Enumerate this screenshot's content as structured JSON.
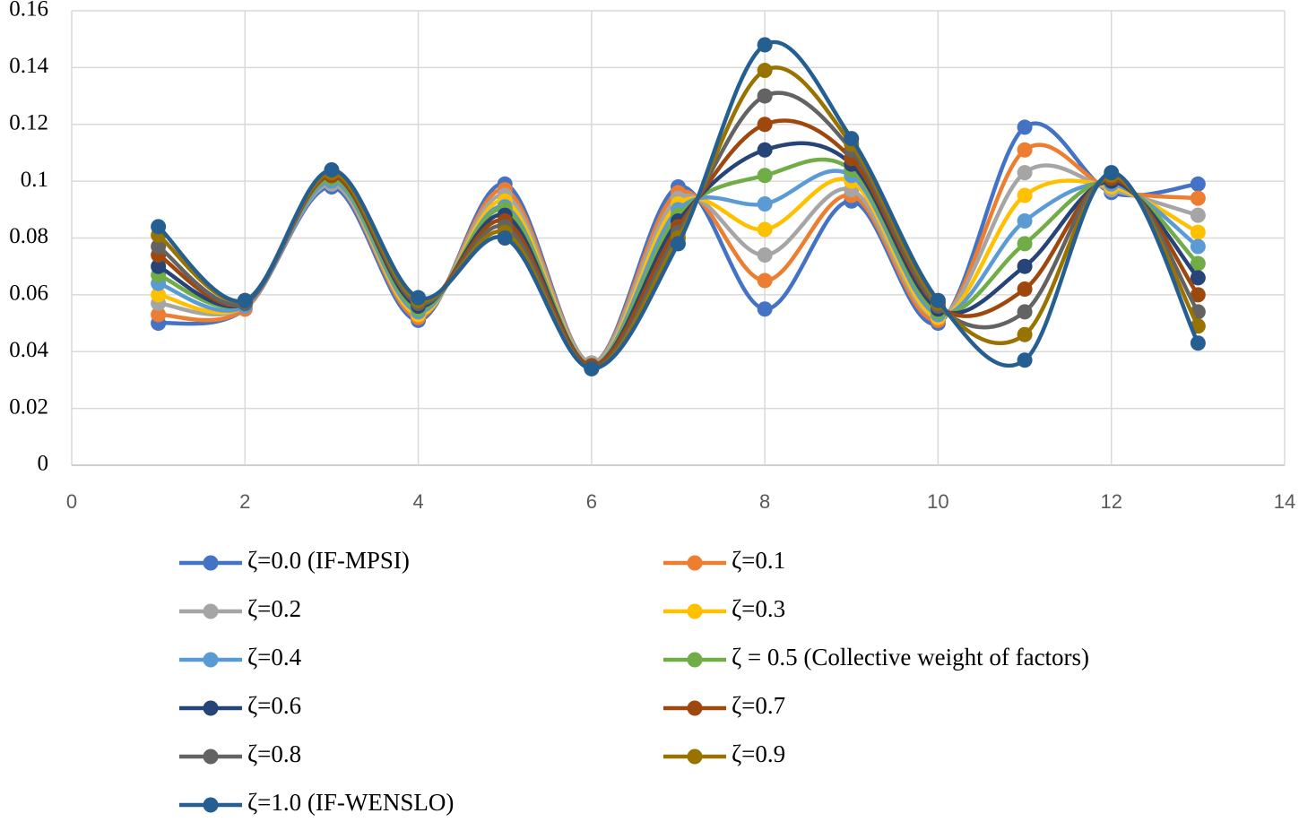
{
  "chart_data": {
    "type": "line",
    "smooth": true,
    "grid": true,
    "x": [
      1,
      2,
      3,
      4,
      5,
      6,
      7,
      8,
      9,
      10,
      11,
      12,
      13
    ],
    "xlim": [
      0,
      14
    ],
    "xticks": [
      0,
      2,
      4,
      6,
      8,
      10,
      12,
      14
    ],
    "ylim": [
      0,
      0.16
    ],
    "yticks": [
      0,
      0.02,
      0.04,
      0.06,
      0.08,
      0.1,
      0.12,
      0.14,
      0.16
    ],
    "series": [
      {
        "name": "ζ=0.0 (IF-MPSI)",
        "color": "#4472c4",
        "values": [
          0.05,
          0.055,
          0.098,
          0.051,
          0.099,
          0.036,
          0.098,
          0.055,
          0.093,
          0.05,
          0.119,
          0.096,
          0.099
        ]
      },
      {
        "name": "ζ=0.1",
        "color": "#ed7d31",
        "values": [
          0.053,
          0.055,
          0.099,
          0.052,
          0.097,
          0.036,
          0.096,
          0.065,
          0.095,
          0.051,
          0.111,
          0.097,
          0.094
        ]
      },
      {
        "name": "ζ=0.2",
        "color": "#a5a5a5",
        "values": [
          0.057,
          0.056,
          0.099,
          0.053,
          0.095,
          0.036,
          0.094,
          0.074,
          0.097,
          0.052,
          0.103,
          0.097,
          0.088
        ]
      },
      {
        "name": "ζ=0.3",
        "color": "#ffc000",
        "values": [
          0.06,
          0.056,
          0.1,
          0.053,
          0.093,
          0.035,
          0.092,
          0.083,
          0.1,
          0.052,
          0.095,
          0.098,
          0.082
        ]
      },
      {
        "name": "ζ=0.4",
        "color": "#5b9bd5",
        "values": [
          0.064,
          0.056,
          0.1,
          0.054,
          0.091,
          0.035,
          0.09,
          0.092,
          0.102,
          0.053,
          0.086,
          0.099,
          0.077
        ]
      },
      {
        "name": "ζ = 0.5 (Collective weight of factors)",
        "color": "#70ad47",
        "values": [
          0.067,
          0.057,
          0.101,
          0.055,
          0.09,
          0.035,
          0.088,
          0.102,
          0.104,
          0.054,
          0.078,
          0.1,
          0.071
        ]
      },
      {
        "name": "ζ=0.6",
        "color": "#264478",
        "values": [
          0.07,
          0.057,
          0.102,
          0.056,
          0.088,
          0.035,
          0.086,
          0.111,
          0.106,
          0.055,
          0.07,
          0.1,
          0.066
        ]
      },
      {
        "name": "ζ=0.7",
        "color": "#9e480e",
        "values": [
          0.074,
          0.057,
          0.102,
          0.057,
          0.086,
          0.035,
          0.084,
          0.12,
          0.108,
          0.056,
          0.062,
          0.101,
          0.06
        ]
      },
      {
        "name": "ζ=0.8",
        "color": "#636363",
        "values": [
          0.077,
          0.057,
          0.103,
          0.057,
          0.084,
          0.034,
          0.082,
          0.13,
          0.111,
          0.056,
          0.054,
          0.102,
          0.054
        ]
      },
      {
        "name": "ζ=0.9",
        "color": "#997300",
        "values": [
          0.081,
          0.058,
          0.103,
          0.058,
          0.082,
          0.034,
          0.08,
          0.139,
          0.113,
          0.057,
          0.046,
          0.102,
          0.049
        ]
      },
      {
        "name": "ζ=1.0 (IF-WENSLO)",
        "color": "#255e91",
        "values": [
          0.084,
          0.058,
          0.104,
          0.059,
          0.08,
          0.034,
          0.078,
          0.148,
          0.115,
          0.058,
          0.037,
          0.103,
          0.043
        ]
      }
    ]
  }
}
